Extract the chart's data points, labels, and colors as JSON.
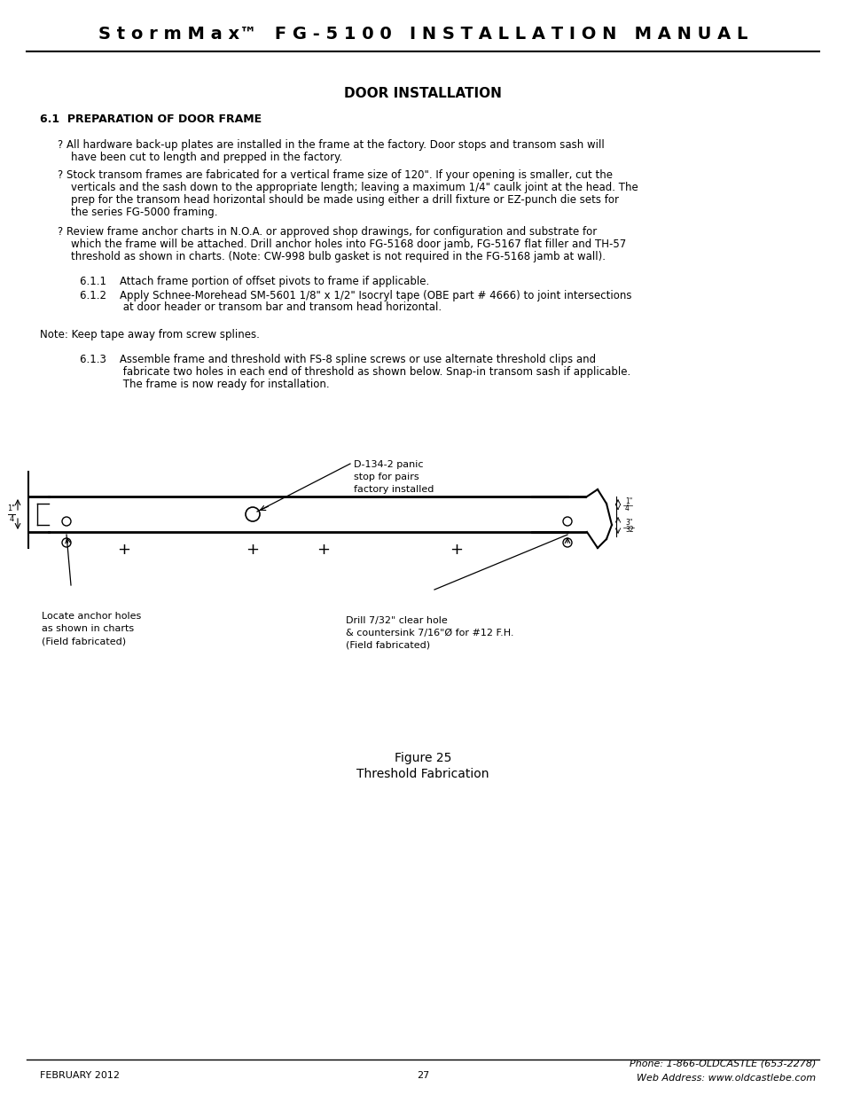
{
  "bg_color": "#ffffff",
  "header_text": "S t o r m M a x™   F G - 5 1 0 0   I N S T A L L A T I O N   M A N U A L",
  "section_title": "DOOR INSTALLATION",
  "section_heading": "6.1  PREPARATION OF DOOR FRAME",
  "bullet1_line1": "? All hardware back-up plates are installed in the frame at the factory. Door stops and transom sash will",
  "bullet1_line2": "have been cut to length and prepped in the factory.",
  "bullet2_line1": "? Stock transom frames are fabricated for a vertical frame size of 120\". If your opening is smaller, cut the",
  "bullet2_line2": "verticals and the sash down to the appropriate length; leaving a maximum 1/4\" caulk joint at the head. The",
  "bullet2_line3": "prep for the transom head horizontal should be made using either a drill fixture or EZ-punch die sets for",
  "bullet2_line4": "the series FG-5000 framing.",
  "bullet3_line1": "? Review frame anchor charts in N.O.A. or approved shop drawings, for configuration and substrate for",
  "bullet3_line2": "which the frame will be attached. Drill anchor holes into FG-5168 door jamb, FG-5167 flat filler and TH-57",
  "bullet3_line3": "threshold as shown in charts. (Note: CW-998 bulb gasket is not required in the FG-5168 jamb at wall).",
  "sub611": "6.1.1    Attach frame portion of offset pivots to frame if applicable.",
  "sub612_line1": "6.1.2    Apply Schnee-Morehead SM-5601 1/8\" x 1/2\" Isocryl tape (OBE part # 4666) to joint intersections",
  "sub612_line2": "             at door header or transom bar and transom head horizontal.",
  "note_text": "Note: Keep tape away from screw splines.",
  "sub613_line1": "6.1.3    Assemble frame and threshold with FS-8 spline screws or use alternate threshold clips and",
  "sub613_line2": "             fabricate two holes in each end of threshold as shown below. Snap-in transom sash if applicable.",
  "sub613_line3": "             The frame is now ready for installation.",
  "fig_caption1": "Figure 25",
  "fig_caption2": "Threshold Fabrication",
  "footer_left": "FEBRUARY 2012",
  "footer_center": "27",
  "footer_right1": "Phone: 1-866-OLDCASTLE (653-2278)",
  "footer_right2": "Web Address: www.oldcastlebe.com",
  "label_d134": "D-134-2 panic\nstop for pairs\nfactory installed",
  "label_anchor": "Locate anchor holes\nas shown in charts\n(Field fabricated)",
  "label_drill": "Drill 7/32\" clear hole\n& countersink 7/16\"Ø for #12 F.H.\n(Field fabricated)"
}
